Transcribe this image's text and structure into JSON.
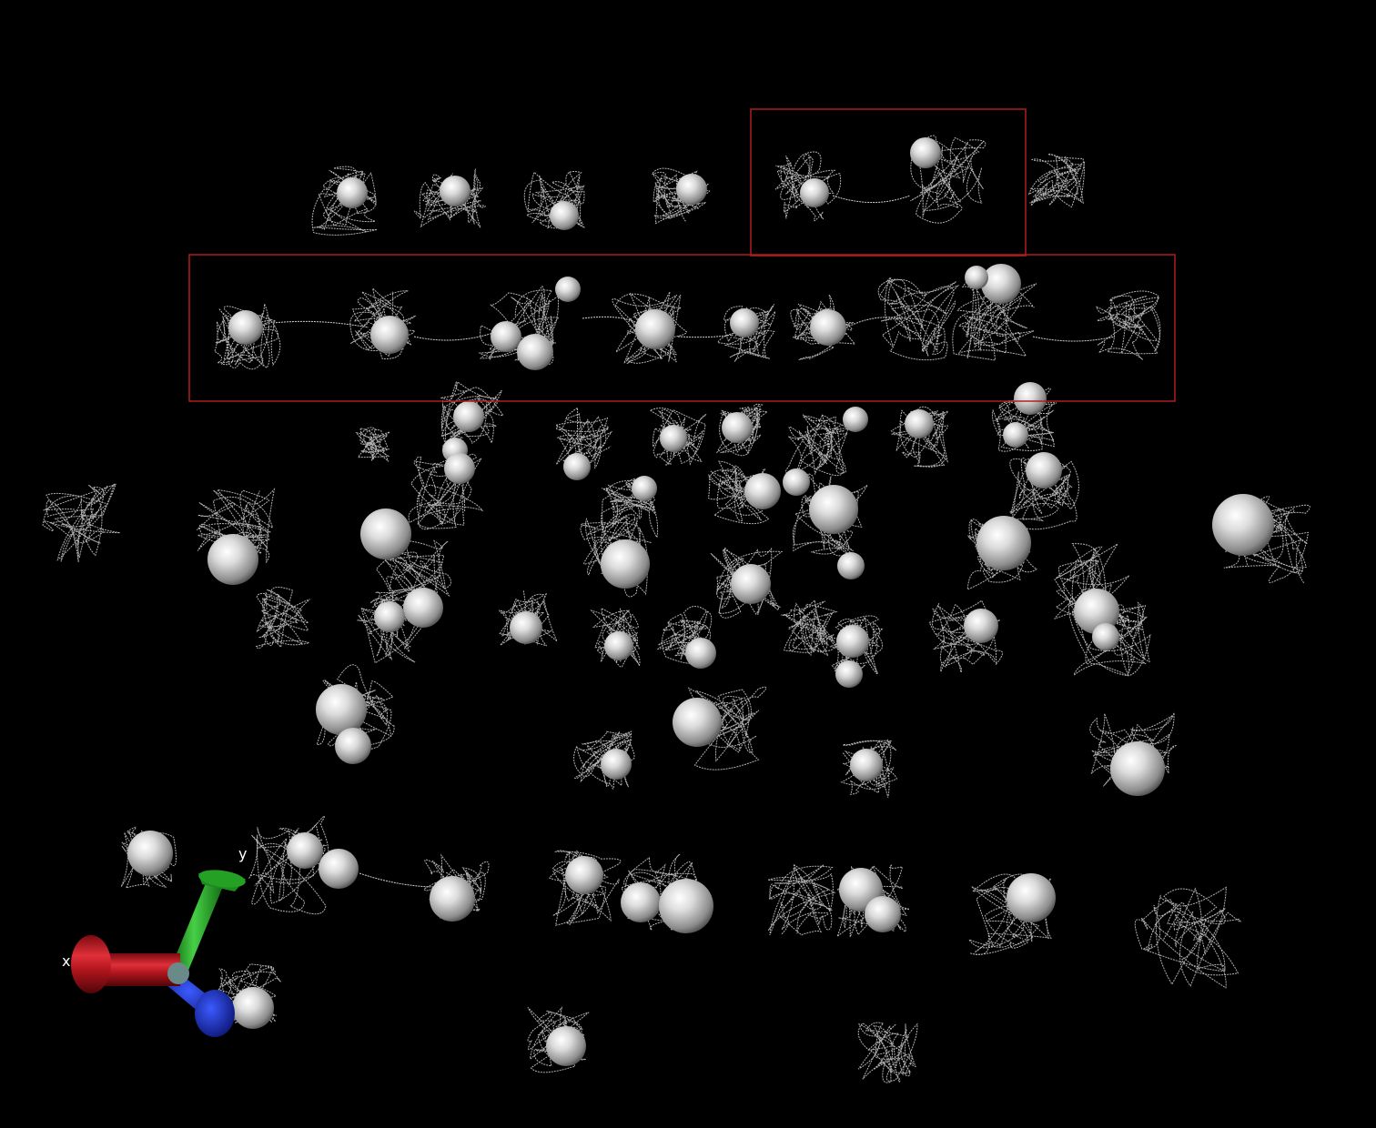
{
  "scene": {
    "background_color": "#000000",
    "bead_color": "#d9d9d9",
    "chain_color": "#cfcfcf",
    "selection_box_color": "#b01e1e"
  },
  "axes_triad": {
    "x_label": "x",
    "y_label": "y",
    "x_color": "#c0141e",
    "y_color": "#1ea01e",
    "z_color": "#1428c8"
  }
}
